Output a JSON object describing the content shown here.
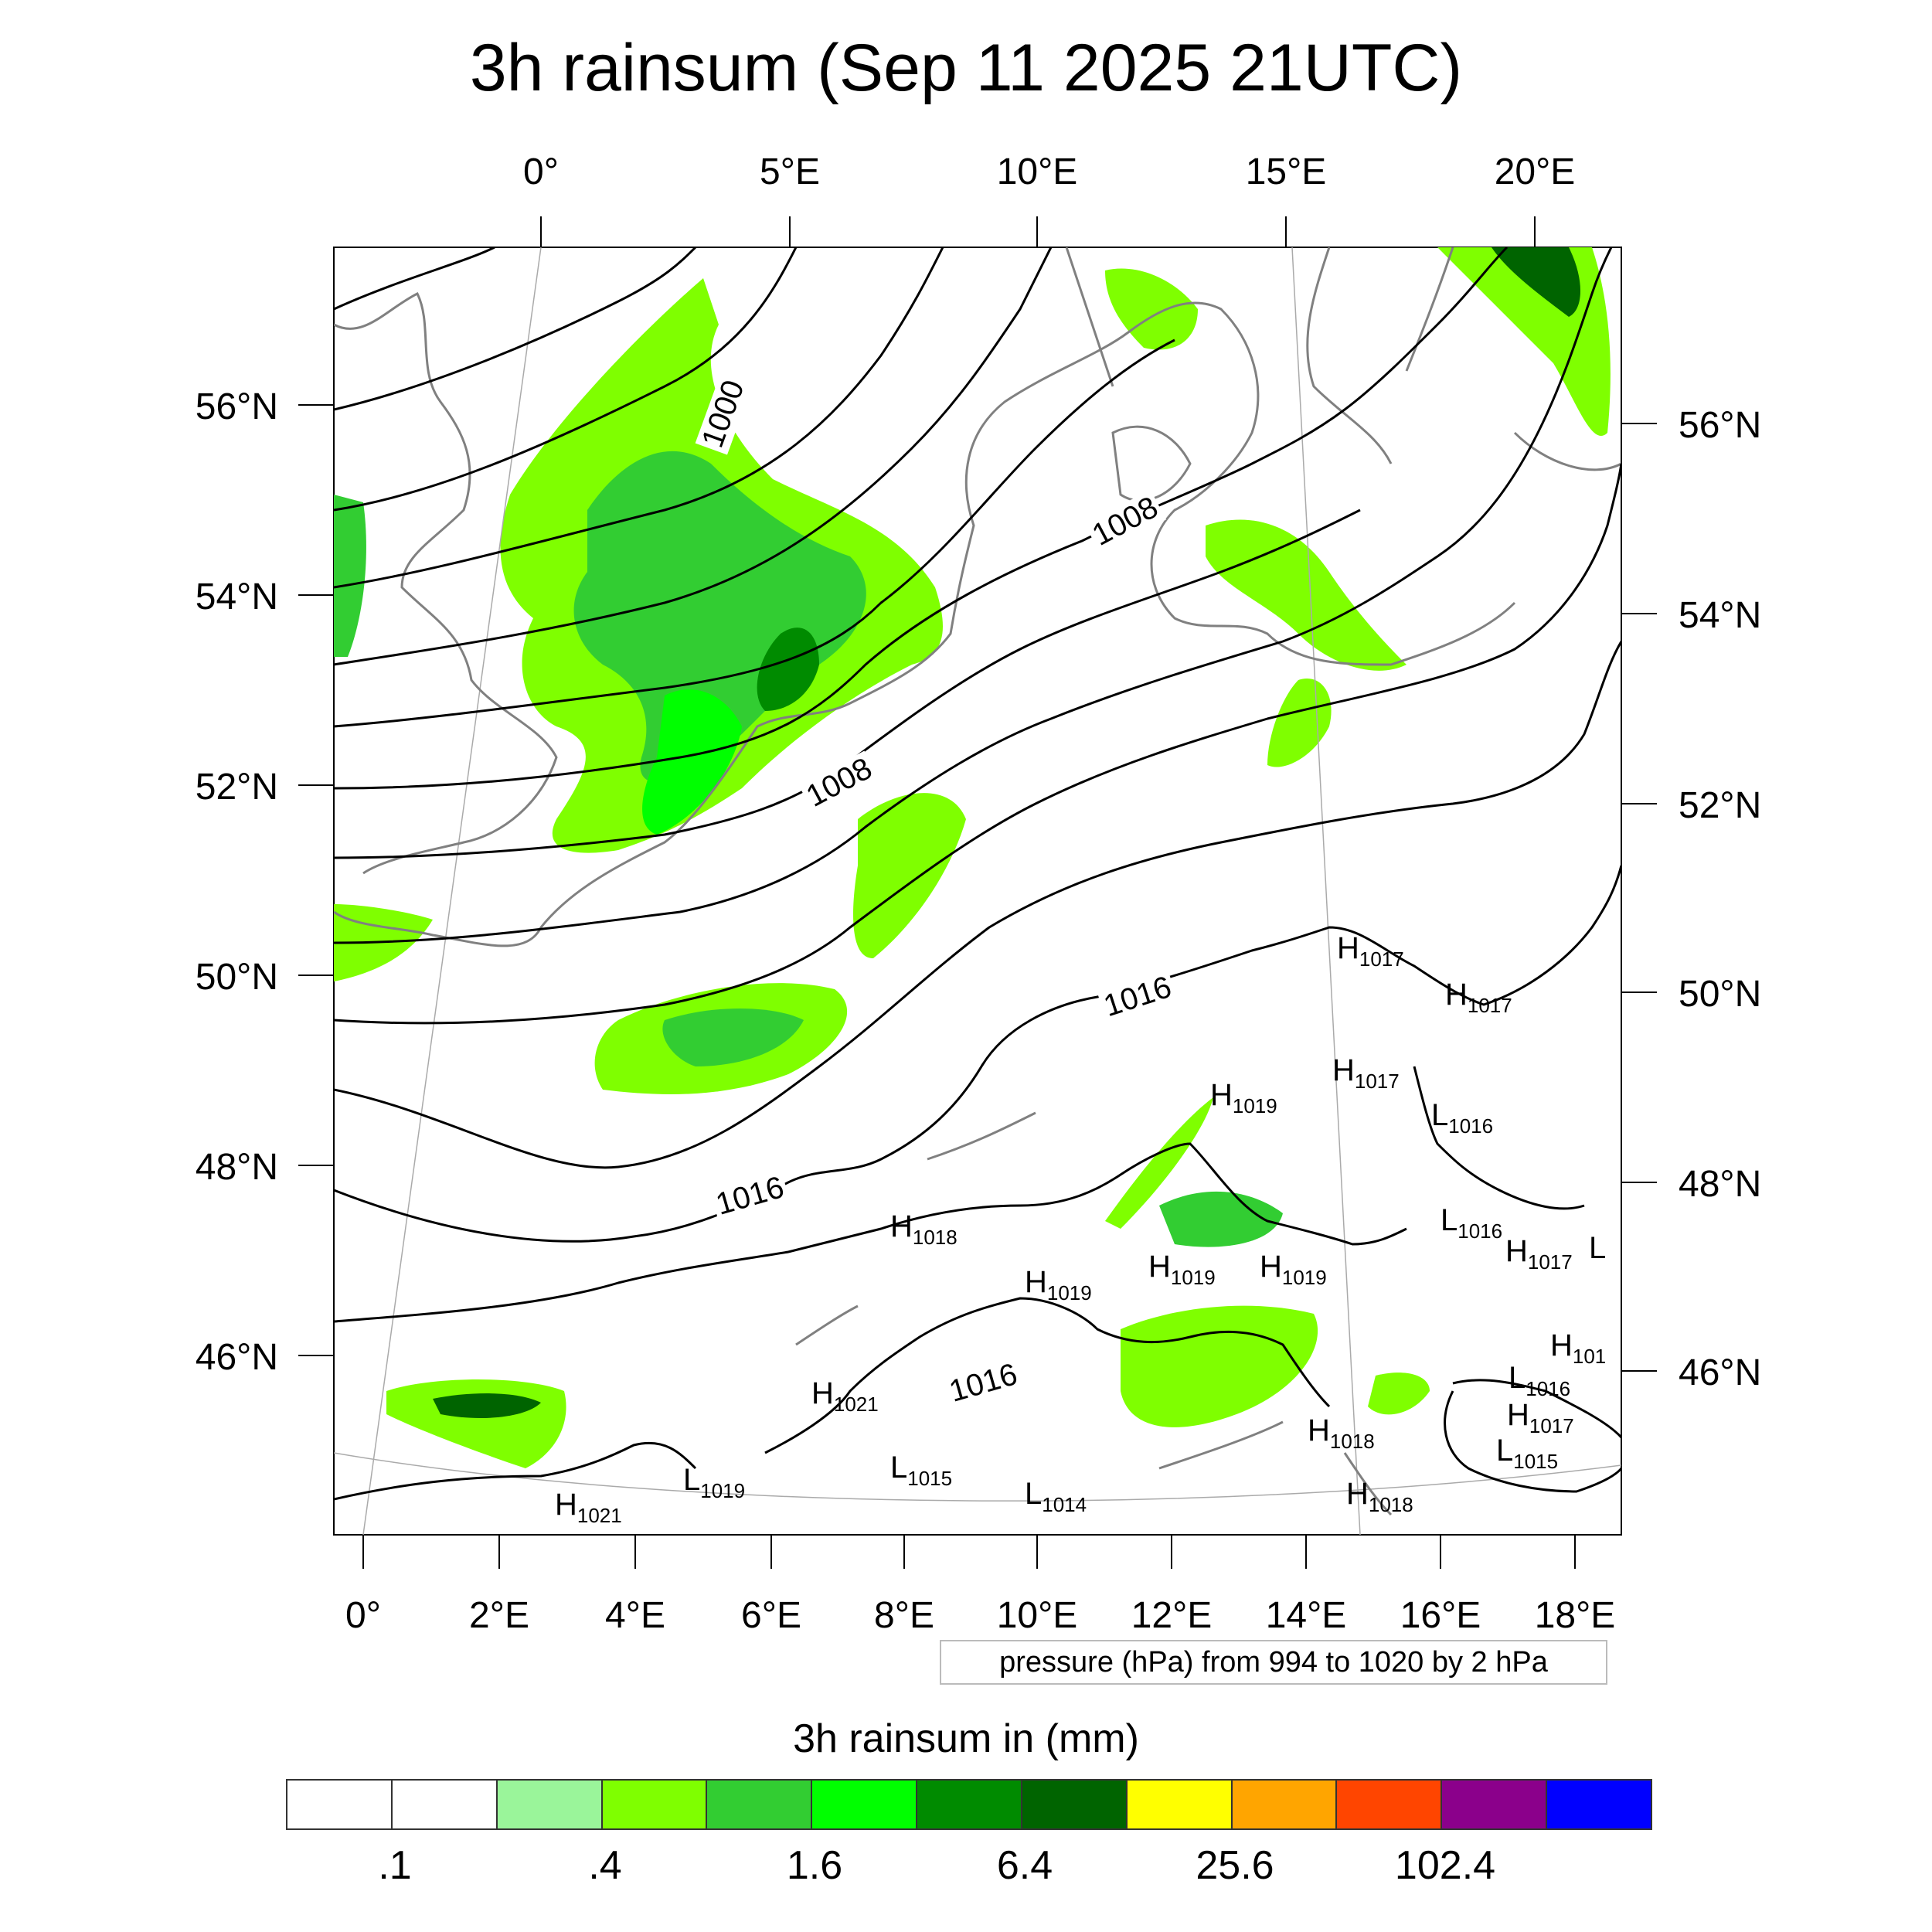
{
  "title": "3h rainsum (Sep 11 2025 21UTC)",
  "map": {
    "top_lon_labels": [
      "0°",
      "5°E",
      "10°E",
      "15°E",
      "20°E"
    ],
    "bottom_lon_labels": [
      "0°",
      "2°E",
      "4°E",
      "6°E",
      "8°E",
      "10°E",
      "12°E",
      "14°E",
      "16°E",
      "18°E"
    ],
    "left_lat_labels": [
      "56°N",
      "54°N",
      "52°N",
      "50°N",
      "48°N",
      "46°N"
    ],
    "right_lat_labels": [
      "56°N",
      "54°N",
      "52°N",
      "50°N",
      "48°N",
      "46°N"
    ],
    "isobar_labels": [
      "1000",
      "1008",
      "1008",
      "1016",
      "1016",
      "1016"
    ],
    "pressure_centers": [
      {
        "type": "H",
        "value": "1017"
      },
      {
        "type": "H",
        "value": "1017"
      },
      {
        "type": "H",
        "value": "1017"
      },
      {
        "type": "H",
        "value": "1019"
      },
      {
        "type": "L",
        "value": "1016"
      },
      {
        "type": "H",
        "value": "1018"
      },
      {
        "type": "L",
        "value": "1016"
      },
      {
        "type": "H",
        "value": "1017"
      },
      {
        "type": "L",
        "value": ""
      },
      {
        "type": "H",
        "value": "1019"
      },
      {
        "type": "H",
        "value": "1019"
      },
      {
        "type": "H",
        "value": "1019"
      },
      {
        "type": "H",
        "value": "101"
      },
      {
        "type": "L",
        "value": "1016"
      },
      {
        "type": "H",
        "value": "1021"
      },
      {
        "type": "H",
        "value": "1017"
      },
      {
        "type": "H",
        "value": "1018"
      },
      {
        "type": "L",
        "value": "1015"
      },
      {
        "type": "L",
        "value": "1019"
      },
      {
        "type": "L",
        "value": "1015"
      },
      {
        "type": "L",
        "value": "1014"
      },
      {
        "type": "H",
        "value": "1018"
      },
      {
        "type": "H",
        "value": "1021"
      }
    ],
    "colors": {
      "isobar": "#000000",
      "coastline": "#808080",
      "graticule": "#aaaaaa"
    }
  },
  "footnote": "pressure (hPa) from 994 to 1020 by 2 hPa",
  "colorbar": {
    "title": "3h rainsum in (mm)",
    "labels": [
      ".1",
      ".4",
      "1.6",
      "6.4",
      "25.6",
      "102.4"
    ],
    "colors": [
      "#ffffff",
      "#ffffff",
      "#9af59a",
      "#7fff00",
      "#32cd32",
      "#00ff00",
      "#008b00",
      "#006400",
      "#ffff00",
      "#ffa500",
      "#ff4500",
      "#8b008b",
      "#0000ff"
    ]
  }
}
